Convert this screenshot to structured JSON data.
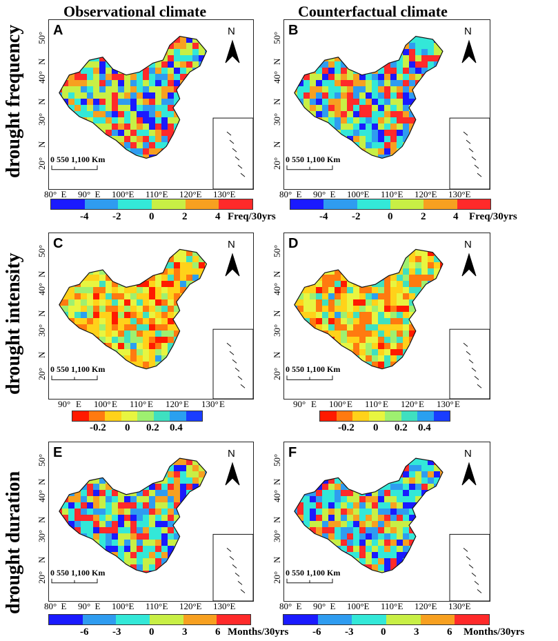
{
  "columns": {
    "left": "Observational climate",
    "right": "Counterfactual climate"
  },
  "rows": {
    "frequency": "drought frequency",
    "intensity": "drought intensity",
    "duration": "drought duration"
  },
  "panels": {
    "A": "A",
    "B": "B",
    "C": "C",
    "D": "D",
    "E": "E",
    "F": "F"
  },
  "north_label": "N",
  "latitudes": [
    "50°",
    "N",
    "40°",
    "N",
    "30°",
    "N",
    "20°"
  ],
  "longitudes": {
    "freq": [
      "80°",
      "E",
      "90°",
      "E",
      "100°",
      "E",
      "110°",
      "E",
      "120°",
      "E",
      "130°",
      "E"
    ],
    "intensity": [
      "90°",
      "E",
      "100°",
      "E",
      "110°",
      "E",
      "120°",
      "E",
      "130°",
      "E"
    ]
  },
  "scale_bar": [
    "0",
    "550",
    "1,100 Km"
  ],
  "colorbars": {
    "frequency": {
      "ticks": [
        "-4",
        "-2",
        "0",
        "2",
        "4"
      ],
      "unit": "Freq/30yrs",
      "colors": [
        "#1a1aff",
        "#2f9cf0",
        "#33e8d8",
        "#c8ef45",
        "#f7a020",
        "#ff2a2a"
      ]
    },
    "intensity": {
      "ticks": [
        "-0.2",
        "0",
        "0.2",
        "0.4"
      ],
      "colors": [
        "#ff1a00",
        "#ff7a10",
        "#ffd21a",
        "#e8f540",
        "#9ef070",
        "#3fe0c0",
        "#2aa0f0",
        "#1a3dff"
      ]
    },
    "duration": {
      "ticks": [
        "-6",
        "-3",
        "0",
        "3",
        "6"
      ],
      "unit": "Months/30yrs",
      "colors": [
        "#1a1aff",
        "#2f9cf0",
        "#33e8d8",
        "#c8ef45",
        "#f7a020",
        "#ff2a2a"
      ]
    }
  }
}
